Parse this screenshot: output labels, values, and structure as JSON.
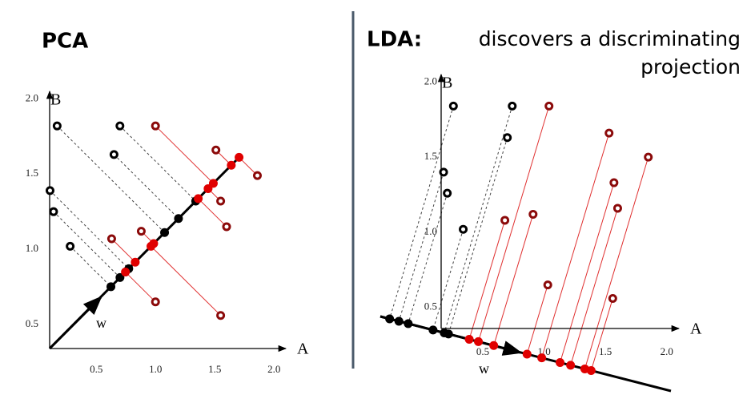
{
  "chart_data": [
    {
      "type": "scatter",
      "title": "PCA",
      "x_label": "A",
      "y_label": "B",
      "projection_label": "w",
      "xlim": [
        0.1,
        2.1
      ],
      "ylim": [
        0.34,
        2.05
      ],
      "xticks": [
        0.5,
        {
          "value": 1,
          "label": "1.0"
        },
        1.5,
        {
          "value": 2,
          "label": "2.0"
        }
      ],
      "yticks": [
        0.5,
        {
          "value": 1,
          "label": "1.0"
        },
        1.5,
        {
          "value": 2,
          "label": "2.0"
        }
      ],
      "grid": false,
      "series": [
        {
          "color": "#000000",
          "x": [
            0.17,
            0.7,
            0.65,
            0.11,
            0.14,
            0.28
          ],
          "values": [
            1.82,
            1.82,
            1.63,
            1.39,
            1.25,
            1.02
          ]
        },
        {
          "color": "#8b0a0a",
          "x": [
            1.0,
            1.51,
            1.55,
            1.6,
            1.86,
            0.63,
            0.88,
            1.0,
            1.55
          ],
          "values": [
            1.82,
            1.66,
            1.32,
            1.15,
            1.49,
            1.07,
            1.12,
            0.65,
            0.56
          ]
        }
      ]
    },
    {
      "type": "scatter",
      "title": "LDA:",
      "subtitle_lines": [
        "discovers a discriminating",
        "projection"
      ],
      "x_label": "A",
      "y_label": "B",
      "projection_label": "w",
      "xlim": [
        0.16,
        2.1
      ],
      "ylim": [
        0.36,
        2.05
      ],
      "xticks": [
        0.5,
        {
          "value": 1,
          "label": "1.0"
        },
        1.5,
        {
          "value": 2,
          "label": "2.0"
        }
      ],
      "yticks": [
        0.5,
        {
          "value": 1,
          "label": "1.0"
        },
        1.5,
        {
          "value": 2,
          "label": "2.0"
        }
      ],
      "grid": false,
      "series": [
        {
          "color": "#000000",
          "x": [
            0.26,
            0.74,
            0.7,
            0.18,
            0.21,
            0.34
          ],
          "values": [
            1.84,
            1.84,
            1.63,
            1.4,
            1.26,
            1.02
          ]
        },
        {
          "color": "#8b0a0a",
          "x": [
            1.04,
            1.53,
            1.57,
            1.6,
            1.85,
            0.68,
            0.91,
            1.03,
            1.56
          ],
          "values": [
            1.84,
            1.66,
            1.33,
            1.16,
            1.5,
            1.08,
            1.12,
            0.65,
            0.56
          ]
        }
      ]
    }
  ]
}
